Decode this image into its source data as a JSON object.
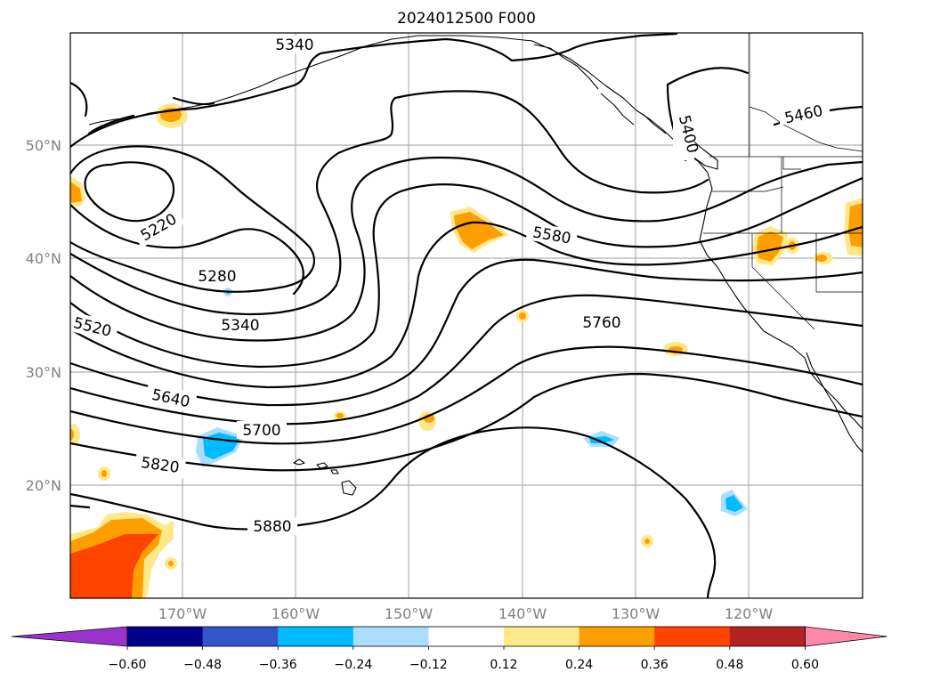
{
  "title": "2024012500 F000",
  "lat_labels": [
    "50°N",
    "40°N",
    "30°N",
    "20°N"
  ],
  "lon_labels": [
    "170°W",
    "160°W",
    "150°W",
    "140°W",
    "130°W",
    "120°W"
  ],
  "contour_labels": [
    "5340",
    "5400",
    "5460",
    "5220",
    "5580",
    "5280",
    "5520",
    "5340",
    "5760",
    "5640",
    "5700",
    "5820",
    "5880"
  ],
  "colorbar": {
    "colors": [
      "#9933cc",
      "#000088",
      "#3355cc",
      "#00bbff",
      "#aaddff",
      "#ffffff",
      "#ffe88a",
      "#ff9e00",
      "#ff4400",
      "#b22222",
      "#ff88aa"
    ],
    "tick_labels": [
      "−0.60",
      "−0.48",
      "−0.36",
      "−0.24",
      "−0.12",
      "0.12",
      "0.24",
      "0.36",
      "0.48",
      "0.60"
    ]
  }
}
